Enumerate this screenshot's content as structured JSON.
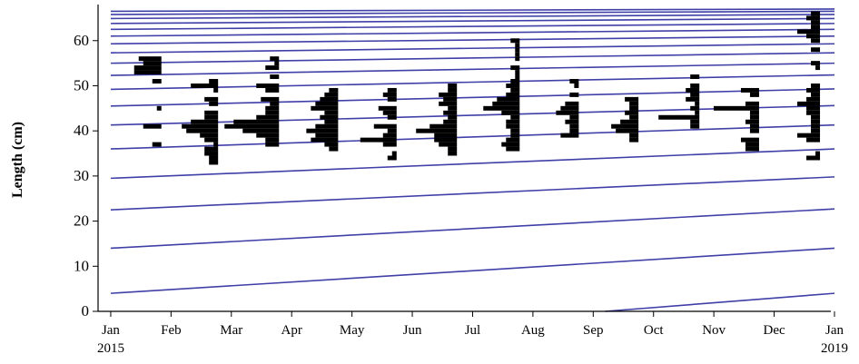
{
  "chart_data": {
    "type": "length-frequency",
    "ylabel": "Length (cm)",
    "ylim": [
      0,
      68
    ],
    "yticks": [
      0,
      10,
      20,
      30,
      40,
      50,
      60
    ],
    "xlim": [
      -0.21,
      11.94
    ],
    "xticks": [
      {
        "value": 0,
        "label": "Jan"
      },
      {
        "value": 1,
        "label": "Feb"
      },
      {
        "value": 2,
        "label": "Mar"
      },
      {
        "value": 3,
        "label": "Apr"
      },
      {
        "value": 4,
        "label": "May"
      },
      {
        "value": 5,
        "label": "Jun"
      },
      {
        "value": 6,
        "label": "Jul"
      },
      {
        "value": 7,
        "label": "Aug"
      },
      {
        "value": 8,
        "label": "Sep"
      },
      {
        "value": 9,
        "label": "Oct"
      },
      {
        "value": 10,
        "label": "Nov"
      },
      {
        "value": 11,
        "label": "Dec"
      },
      {
        "value": 12,
        "label": "Jan"
      }
    ],
    "xtick_years": [
      {
        "value": 0,
        "label": "2015"
      },
      {
        "value": 12,
        "label": "2019"
      }
    ],
    "curve_color": "#3f3fa8",
    "bar_color": "#000000",
    "growth_curves": [
      {
        "x": [
          8.2,
          12
        ],
        "values": [
          0,
          4
        ]
      },
      {
        "x": [
          0,
          12
        ],
        "values": [
          4,
          14
        ]
      },
      {
        "x": [
          0,
          12
        ],
        "values": [
          14,
          22.7
        ]
      },
      {
        "x": [
          0,
          12
        ],
        "values": [
          22.5,
          29.8
        ]
      },
      {
        "x": [
          0,
          12
        ],
        "values": [
          29.5,
          36
        ]
      },
      {
        "x": [
          0,
          12
        ],
        "values": [
          36,
          41.3
        ]
      },
      {
        "x": [
          0,
          12
        ],
        "values": [
          41.3,
          45.6
        ]
      },
      {
        "x": [
          0,
          12
        ],
        "values": [
          45.5,
          49.3
        ]
      },
      {
        "x": [
          0,
          12
        ],
        "values": [
          49.2,
          52.4
        ]
      },
      {
        "x": [
          0,
          12
        ],
        "values": [
          52.3,
          55
        ]
      },
      {
        "x": [
          0,
          12
        ],
        "values": [
          55,
          57.3
        ]
      },
      {
        "x": [
          0,
          12
        ],
        "values": [
          57.3,
          59.3
        ]
      },
      {
        "x": [
          0,
          12
        ],
        "values": [
          59.3,
          61
        ]
      },
      {
        "x": [
          0,
          12
        ],
        "values": [
          61,
          62.5
        ]
      },
      {
        "x": [
          0,
          12
        ],
        "values": [
          62.5,
          63.8
        ]
      },
      {
        "x": [
          0,
          12
        ],
        "values": [
          63.8,
          64.9
        ]
      },
      {
        "x": [
          0,
          12
        ],
        "values": [
          64.9,
          65.8
        ]
      },
      {
        "x": [
          0,
          12
        ],
        "values": [
          65.8,
          66.5
        ]
      },
      {
        "x": [
          0,
          12
        ],
        "values": [
          66.5,
          67
        ]
      }
    ],
    "samples": [
      {
        "x": 0.84,
        "lengths": [
          56,
          55,
          54,
          53,
          51,
          45,
          41,
          37
        ],
        "counts": [
          5,
          4,
          6,
          6,
          2,
          1,
          4,
          2
        ]
      },
      {
        "x": 1.78,
        "lengths": [
          51,
          50,
          49,
          47,
          46,
          44,
          43,
          42,
          41,
          40,
          39,
          38,
          37,
          36,
          35,
          34,
          33
        ],
        "counts": [
          2,
          6,
          1,
          3,
          2,
          3,
          3,
          6,
          8,
          7,
          4,
          3,
          1,
          3,
          3,
          2,
          2
        ]
      },
      {
        "x": 2.79,
        "lengths": [
          56,
          55,
          54,
          52,
          50,
          49,
          47,
          46,
          45,
          44,
          43,
          42,
          41,
          40,
          39,
          38,
          37
        ],
        "counts": [
          2,
          1,
          3,
          2,
          5,
          3,
          4,
          2,
          3,
          3,
          5,
          10,
          12,
          8,
          5,
          3,
          3
        ]
      },
      {
        "x": 3.77,
        "lengths": [
          49,
          48,
          47,
          46,
          45,
          44,
          43,
          42,
          41,
          40,
          39,
          38,
          37,
          36
        ],
        "counts": [
          2,
          3,
          4,
          5,
          6,
          3,
          4,
          3,
          5,
          7,
          5,
          6,
          3,
          2
        ]
      },
      {
        "x": 4.74,
        "lengths": [
          49,
          48,
          47,
          45,
          44,
          43,
          41,
          40,
          39,
          38,
          37,
          35,
          34
        ],
        "counts": [
          2,
          3,
          2,
          4,
          3,
          2,
          5,
          2,
          3,
          8,
          3,
          1,
          2
        ]
      },
      {
        "x": 5.74,
        "lengths": [
          50,
          49,
          48,
          47,
          46,
          45,
          44,
          43,
          42,
          41,
          40,
          39,
          38,
          37,
          36,
          35
        ],
        "counts": [
          2,
          2,
          4,
          3,
          4,
          2,
          3,
          2,
          3,
          6,
          9,
          5,
          5,
          4,
          2,
          2
        ]
      },
      {
        "x": 6.78,
        "lengths": [
          60,
          59,
          58,
          57,
          56,
          54,
          53,
          52,
          51,
          50,
          49,
          48,
          47,
          46,
          45,
          44,
          43,
          42,
          41,
          40,
          39,
          38,
          37,
          36
        ],
        "counts": [
          2,
          1,
          1,
          1,
          1,
          2,
          1,
          1,
          2,
          3,
          2,
          3,
          5,
          6,
          8,
          4,
          2,
          3,
          3,
          2,
          2,
          3,
          4,
          3
        ]
      },
      {
        "x": 7.76,
        "lengths": [
          51,
          50,
          48,
          46,
          45,
          44,
          43,
          42,
          41,
          40,
          39
        ],
        "counts": [
          2,
          1,
          2,
          3,
          4,
          5,
          2,
          3,
          2,
          2,
          4
        ]
      },
      {
        "x": 8.75,
        "lengths": [
          47,
          46,
          45,
          44,
          43,
          42,
          41,
          40,
          39,
          38
        ],
        "counts": [
          3,
          2,
          2,
          3,
          2,
          4,
          6,
          5,
          2,
          2
        ]
      },
      {
        "x": 9.76,
        "lengths": [
          52,
          50,
          49,
          48,
          47,
          46,
          45,
          44,
          43,
          42,
          41
        ],
        "counts": [
          2,
          2,
          3,
          2,
          3,
          1,
          2,
          1,
          9,
          2,
          2
        ]
      },
      {
        "x": 10.75,
        "lengths": [
          49,
          48,
          46,
          45,
          44,
          43,
          42,
          41,
          40,
          38,
          37,
          36
        ],
        "counts": [
          4,
          2,
          3,
          10,
          2,
          2,
          3,
          2,
          2,
          4,
          3,
          3
        ]
      },
      {
        "x": 11.76,
        "lengths": [
          66,
          65,
          64,
          63,
          62,
          61,
          60,
          58,
          55,
          54,
          50,
          49,
          48,
          47,
          46,
          45,
          44,
          43,
          42,
          41,
          40,
          39,
          38,
          35,
          34
        ],
        "counts": [
          2,
          3,
          2,
          2,
          5,
          3,
          2,
          2,
          2,
          1,
          2,
          3,
          2,
          3,
          5,
          3,
          3,
          2,
          2,
          2,
          2,
          5,
          3,
          1,
          3
        ]
      }
    ]
  }
}
